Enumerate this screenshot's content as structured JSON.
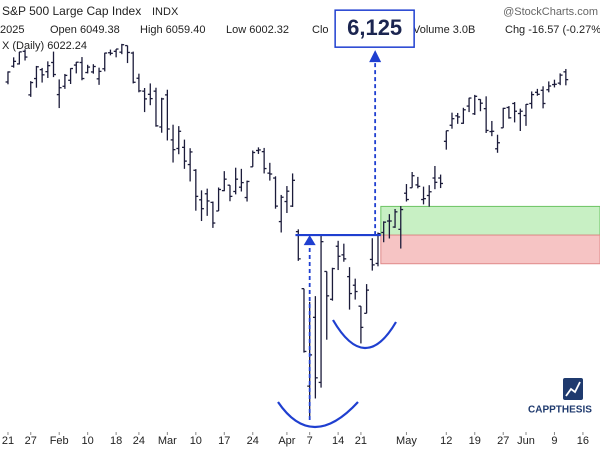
{
  "chart_data": {
    "type": "ohlc",
    "title": "S&P 500 Large Cap Index",
    "exchange": "INDX",
    "watermark": "@StockCharts.com",
    "header_items": [
      "2025",
      "Open 6049.38",
      "High 6059.40",
      "Low 6002.32",
      "Clo",
      "Volume 3.0B",
      "Chg -16.57 (-0.27%"
    ],
    "legend_label": "X (Daily) 6022.24",
    "logo": "CAPPTHESIS",
    "color": "#1b1b3a",
    "annotation_color": "#1f3fd0",
    "ylim": [
      4800,
      6300
    ],
    "xlim": [
      -1.4,
      104
    ],
    "xticks": [
      {
        "value": 0,
        "label": "21"
      },
      {
        "value": 4,
        "label": "27"
      },
      {
        "value": 9,
        "label": "Feb"
      },
      {
        "value": 14,
        "label": "10"
      },
      {
        "value": 19,
        "label": "18"
      },
      {
        "value": 23,
        "label": "24"
      },
      {
        "value": 28,
        "label": "Mar"
      },
      {
        "value": 33,
        "label": "10"
      },
      {
        "value": 38,
        "label": "17"
      },
      {
        "value": 43,
        "label": "24"
      },
      {
        "value": 49,
        "label": "Apr"
      },
      {
        "value": 53,
        "label": "7"
      },
      {
        "value": 58,
        "label": "14"
      },
      {
        "value": 62,
        "label": "21"
      },
      {
        "value": 70,
        "label": "May"
      },
      {
        "value": 77,
        "label": "12"
      },
      {
        "value": 82,
        "label": "19"
      },
      {
        "value": 87,
        "label": "27"
      },
      {
        "value": 91,
        "label": "Jun"
      },
      {
        "value": 96,
        "label": "9"
      },
      {
        "value": 101,
        "label": "16"
      }
    ],
    "open": [
      6014,
      6069,
      6077,
      6121,
      5969,
      6026,
      6057,
      6050,
      6082,
      5970,
      5999,
      6020,
      6073,
      6082,
      6047,
      6049,
      6025,
      6060,
      6116,
      6121,
      6118,
      6141,
      6115,
      6027,
      5982,
      5971,
      5982,
      5857,
      5969,
      5812,
      5782,
      5786,
      5726,
      5706,
      5603,
      5624,
      5594,
      5564,
      5635,
      5654,
      5632,
      5647,
      5611,
      5718,
      5775,
      5771,
      5696,
      5679,
      5527,
      5597,
      5581,
      5492,
      5293,
      4953,
      5193,
      4966,
      5353,
      5256,
      5441,
      5411,
      5335,
      5305,
      5232,
      5207,
      5395,
      5381,
      5489,
      5529,
      5508,
      5500,
      5626,
      5645,
      5655,
      5604,
      5618,
      5679,
      5679,
      5807,
      5863,
      5896,
      5870,
      5930,
      5903,
      5953,
      5921,
      5841,
      5781,
      5854,
      5925,
      5939,
      5904,
      5897,
      5939,
      5978,
      5985,
      5987,
      6005,
      6010,
      6049.38
    ],
    "high": [
      6051,
      6100,
      6119,
      6128,
      6017,
      6070,
      6063,
      6086,
      6120,
      6023,
      6042,
      6062,
      6084,
      6101,
      6074,
      6076,
      6064,
      6116,
      6127,
      6129,
      6147,
      6141,
      6120,
      6043,
      5993,
      6009,
      5994,
      5959,
      5987,
      5865,
      5860,
      5813,
      5783,
      5710,
      5636,
      5642,
      5597,
      5646,
      5703,
      5654,
      5715,
      5711,
      5670,
      5775,
      5786,
      5784,
      5732,
      5685,
      5620,
      5651,
      5695,
      5500,
      5293,
      5247,
      5267,
      5481,
      5353,
      5366,
      5460,
      5450,
      5368,
      5328,
      5232,
      5309,
      5469,
      5489,
      5528,
      5553,
      5571,
      5581,
      5658,
      5700,
      5683,
      5649,
      5654,
      5721,
      5691,
      5844,
      5907,
      5906,
      5924,
      5959,
      5969,
      5954,
      5964,
      5878,
      5830,
      5924,
      5930,
      5944,
      5921,
      5937,
      5981,
      5990,
      5999,
      6016,
      6022,
      6044,
      6059.4
    ],
    "low": [
      6006,
      6064,
      6075,
      6089,
      5962,
      5994,
      6012,
      6028,
      6031,
      5923,
      5990,
      6007,
      6044,
      6020,
      6044,
      6043,
      6004,
      6051,
      6107,
      6100,
      6111,
      6080,
      6009,
      5978,
      5909,
      5933,
      5858,
      5837,
      5810,
      5733,
      5762,
      5711,
      5667,
      5565,
      5529,
      5547,
      5505,
      5564,
      5633,
      5598,
      5622,
      5632,
      5597,
      5718,
      5763,
      5695,
      5670,
      5572,
      5489,
      5557,
      5578,
      5390,
      5070,
      4835,
      4910,
      4948,
      5115,
      5251,
      5358,
      5387,
      5220,
      5255,
      5102,
      5207,
      5356,
      5371,
      5455,
      5468,
      5505,
      5433,
      5597,
      5645,
      5643,
      5587,
      5579,
      5640,
      5644,
      5778,
      5851,
      5868,
      5868,
      5909,
      5899,
      5912,
      5836,
      5825,
      5767,
      5854,
      5886,
      5873,
      5843,
      5861,
      5921,
      5966,
      5922,
      5978,
      5995,
      6003,
      6002.32
    ],
    "close": [
      6049,
      6086,
      6119,
      6101,
      6012,
      6067,
      6039,
      6071,
      6040,
      5994,
      6037,
      6061,
      6083,
      6026,
      6066,
      6068,
      6051,
      6115,
      6114,
      6129,
      6144,
      6117,
      6013,
      5983,
      5955,
      5956,
      5861,
      5955,
      5850,
      5778,
      5842,
      5738,
      5770,
      5615,
      5572,
      5599,
      5522,
      5639,
      5675,
      5615,
      5675,
      5663,
      5667,
      5768,
      5777,
      5712,
      5693,
      5581,
      5612,
      5633,
      5671,
      5397,
      5074,
      5062,
      4982,
      5457,
      5268,
      5363,
      5406,
      5397,
      5276,
      5283,
      5158,
      5288,
      5376,
      5485,
      5525,
      5529,
      5561,
      5569,
      5604,
      5687,
      5650,
      5607,
      5631,
      5664,
      5660,
      5844,
      5886,
      5892,
      5917,
      5958,
      5964,
      5940,
      5845,
      5842,
      5802,
      5922,
      5889,
      5912,
      5912,
      5936,
      5970,
      5971,
      5939,
      6000,
      6006,
      6038,
      6022.24
    ],
    "neckline": {
      "value": 5480,
      "from": 50.5,
      "to": 65.5
    },
    "zones": [
      {
        "from": 5480,
        "to": 5580,
        "start": 65.5,
        "color": "#c8f0c4",
        "edge": "#6cc463"
      },
      {
        "from": 5380,
        "to": 5480,
        "start": 65.5,
        "color": "#f6c4c4",
        "edge": "#e08a8a"
      }
    ],
    "annotations": [
      {
        "label": "6,125",
        "value": 6125,
        "x": 64.5
      }
    ],
    "low_arrow": {
      "x": 53,
      "value": 4835
    }
  }
}
